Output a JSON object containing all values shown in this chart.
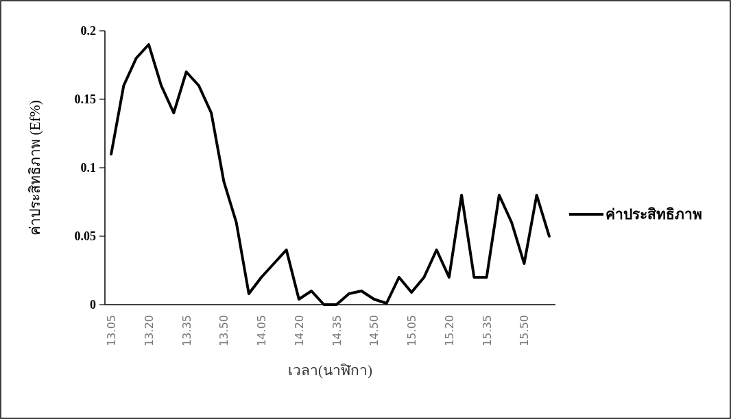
{
  "chart_data": {
    "type": "line",
    "xlabel": "เวลา(นาฬิกา)",
    "ylabel": "ค่าประสิทธิภาพ (Ef%)",
    "categories": [
      "13.05",
      null,
      null,
      "13.20",
      null,
      null,
      "13.35",
      null,
      null,
      "13.50",
      null,
      null,
      "14.05",
      null,
      null,
      "14.20",
      null,
      null,
      "14.35",
      null,
      null,
      "14.50",
      null,
      null,
      "15.05",
      null,
      null,
      "15.20",
      null,
      null,
      "15.35",
      null,
      null,
      "15.50",
      null,
      null
    ],
    "series": [
      {
        "name": "ค่าประสิทธิภาพ",
        "color": "#000000",
        "values": [
          0.11,
          0.16,
          0.18,
          0.19,
          0.16,
          0.14,
          0.17,
          0.16,
          0.14,
          0.09,
          0.06,
          0.008,
          0.02,
          0.03,
          0.04,
          0.004,
          0.01,
          0,
          0,
          0.008,
          0.01,
          0.004,
          0.001,
          0.02,
          0.009,
          0.02,
          0.04,
          0.02,
          0.08,
          0.02,
          0.02,
          0.08,
          0.06,
          0.03,
          0.08,
          0.05
        ]
      }
    ],
    "ylim": [
      0,
      0.2
    ],
    "yticks": [
      0,
      0.05,
      0.1,
      0.15,
      0.2
    ],
    "legend": "right",
    "marker": "none",
    "line_style": "solid"
  }
}
